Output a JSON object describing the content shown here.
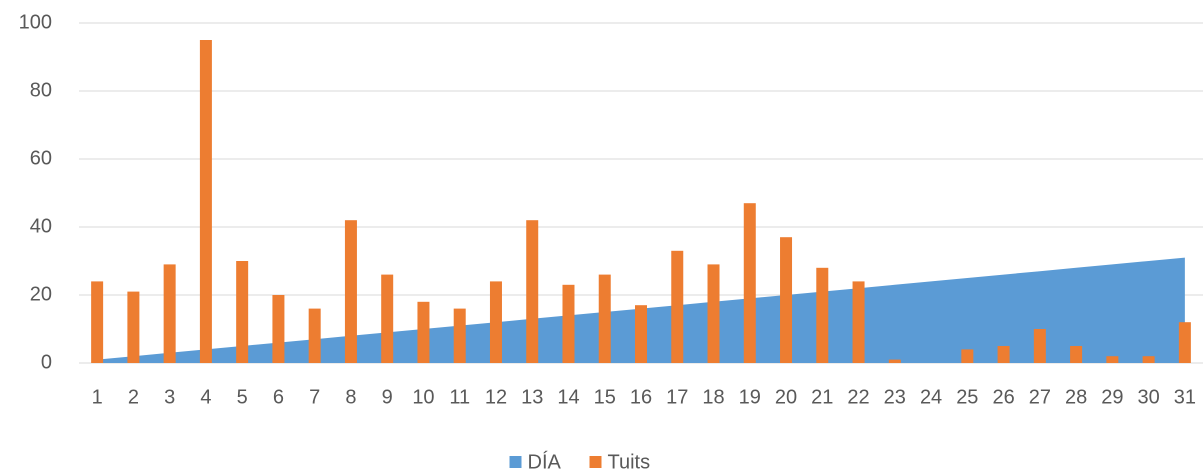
{
  "chart_data": {
    "type": "bar",
    "categories": [
      "1",
      "2",
      "3",
      "4",
      "5",
      "6",
      "7",
      "8",
      "9",
      "10",
      "11",
      "12",
      "13",
      "14",
      "15",
      "16",
      "17",
      "18",
      "19",
      "20",
      "21",
      "22",
      "23",
      "24",
      "25",
      "26",
      "27",
      "28",
      "29",
      "30",
      "31"
    ],
    "series": [
      {
        "name": "DÍA",
        "type": "area",
        "color": "#5b9bd5",
        "values": [
          1,
          2,
          3,
          4,
          5,
          6,
          7,
          8,
          9,
          10,
          11,
          12,
          13,
          14,
          15,
          16,
          17,
          18,
          19,
          20,
          21,
          22,
          23,
          24,
          25,
          26,
          27,
          28,
          29,
          30,
          31
        ]
      },
      {
        "name": "Tuits",
        "type": "bar",
        "color": "#ed7d31",
        "values": [
          24,
          21,
          29,
          95,
          30,
          20,
          16,
          42,
          26,
          18,
          16,
          24,
          42,
          23,
          26,
          17,
          33,
          29,
          47,
          37,
          28,
          24,
          1,
          0,
          4,
          5,
          10,
          5,
          2,
          2,
          12
        ]
      }
    ],
    "ylim": [
      0,
      100
    ],
    "yticks": [
      0,
      20,
      40,
      60,
      80,
      100
    ],
    "grid": true,
    "legend": "bottom"
  }
}
